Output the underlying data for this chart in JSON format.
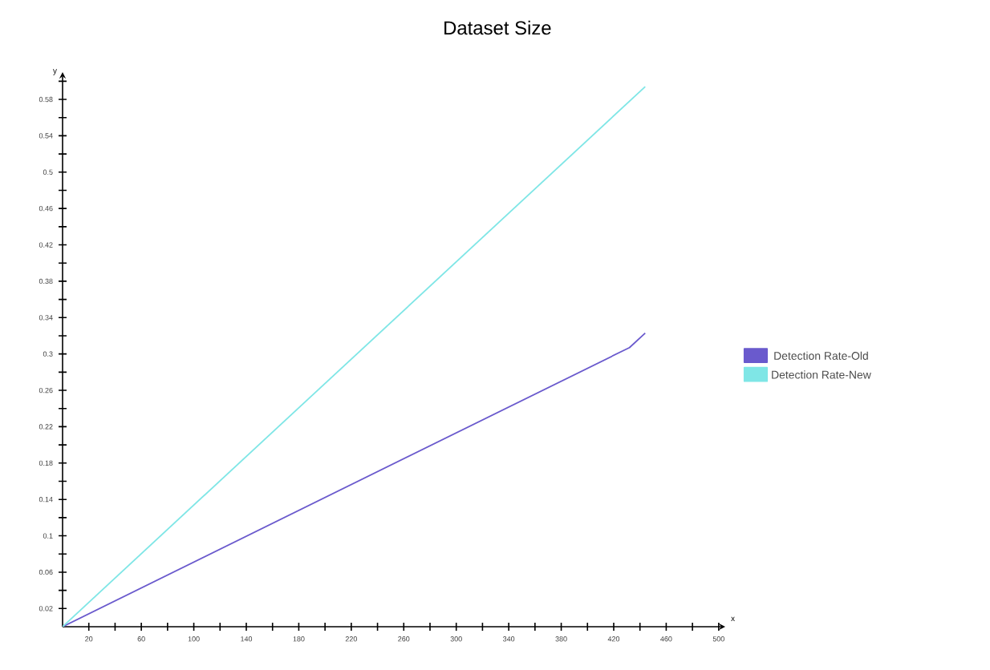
{
  "chart_data": {
    "type": "line",
    "title": "Dataset Size",
    "xlabel": "x",
    "ylabel": "y",
    "xlim": [
      0,
      505
    ],
    "ylim": [
      0,
      0.61
    ],
    "xticks": [
      {
        "value": 20,
        "label": "20"
      },
      {
        "value": 40,
        "label": null
      },
      {
        "value": 60,
        "label": "60"
      },
      {
        "value": 80,
        "label": null
      },
      {
        "value": 100,
        "label": "100"
      },
      {
        "value": 120,
        "label": null
      },
      {
        "value": 140,
        "label": "140"
      },
      {
        "value": 160,
        "label": null
      },
      {
        "value": 180,
        "label": "180"
      },
      {
        "value": 200,
        "label": null
      },
      {
        "value": 220,
        "label": "220"
      },
      {
        "value": 240,
        "label": null
      },
      {
        "value": 260,
        "label": "260"
      },
      {
        "value": 280,
        "label": null
      },
      {
        "value": 300,
        "label": "300"
      },
      {
        "value": 320,
        "label": null
      },
      {
        "value": 340,
        "label": "340"
      },
      {
        "value": 360,
        "label": null
      },
      {
        "value": 380,
        "label": "380"
      },
      {
        "value": 400,
        "label": null
      },
      {
        "value": 420,
        "label": "420"
      },
      {
        "value": 440,
        "label": null
      },
      {
        "value": 460,
        "label": "460"
      },
      {
        "value": 480,
        "label": null
      },
      {
        "value": 500,
        "label": "500"
      }
    ],
    "yticks": [
      {
        "value": 0.02,
        "label": "0.02"
      },
      {
        "value": 0.04,
        "label": null
      },
      {
        "value": 0.06,
        "label": "0.06"
      },
      {
        "value": 0.08,
        "label": null
      },
      {
        "value": 0.1,
        "label": "0.1"
      },
      {
        "value": 0.12,
        "label": null
      },
      {
        "value": 0.14,
        "label": "0.14"
      },
      {
        "value": 0.16,
        "label": null
      },
      {
        "value": 0.18,
        "label": "0.18"
      },
      {
        "value": 0.2,
        "label": null
      },
      {
        "value": 0.22,
        "label": "0.22"
      },
      {
        "value": 0.24,
        "label": null
      },
      {
        "value": 0.26,
        "label": "0.26"
      },
      {
        "value": 0.28,
        "label": null
      },
      {
        "value": 0.3,
        "label": "0.3"
      },
      {
        "value": 0.32,
        "label": null
      },
      {
        "value": 0.34,
        "label": "0.34"
      },
      {
        "value": 0.36,
        "label": null
      },
      {
        "value": 0.38,
        "label": "0.38"
      },
      {
        "value": 0.4,
        "label": null
      },
      {
        "value": 0.42,
        "label": "0.42"
      },
      {
        "value": 0.44,
        "label": null
      },
      {
        "value": 0.46,
        "label": "0.46"
      },
      {
        "value": 0.48,
        "label": null
      },
      {
        "value": 0.5,
        "label": "0.5"
      },
      {
        "value": 0.52,
        "label": null
      },
      {
        "value": 0.54,
        "label": "0.54"
      },
      {
        "value": 0.56,
        "label": null
      },
      {
        "value": 0.58,
        "label": "0.58"
      },
      {
        "value": 0.6,
        "label": null
      }
    ],
    "grid": false,
    "legend": "right",
    "marker": "none",
    "line_style": "solid",
    "series": [
      {
        "name": "Detection Rate-Old",
        "color": "#6a5acd",
        "x": [
          0,
          432,
          444
        ],
        "values": [
          0,
          0.307,
          0.323
        ]
      },
      {
        "name": "Detection Rate-New",
        "color": "#7fe6e6",
        "x": [
          0,
          444
        ],
        "values": [
          0,
          0.594
        ]
      }
    ]
  }
}
